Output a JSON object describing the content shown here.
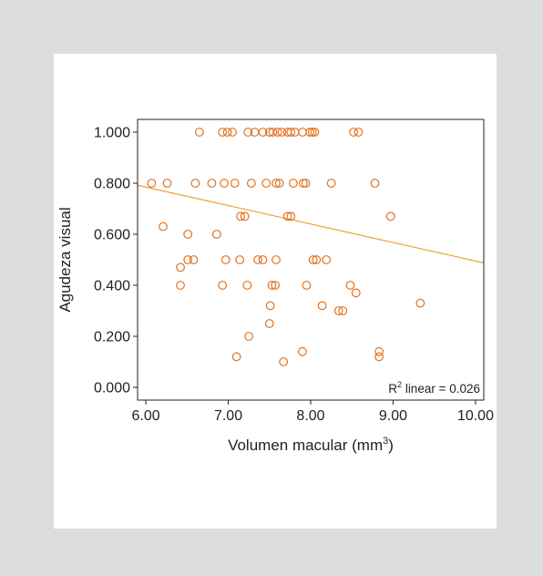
{
  "chart_data": {
    "type": "scatter",
    "xlabel_text": "Volumen macular (mm",
    "xlabel_sup": "3",
    "xlabel_close": ")",
    "ylabel": "Agudeza visual",
    "xlim": [
      5.9,
      10.1
    ],
    "ylim": [
      -0.05,
      1.05
    ],
    "x_ticks": [
      6,
      7,
      8,
      9,
      10
    ],
    "x_tick_labels": [
      "6.00",
      "7.00",
      "8.00",
      "9.00",
      "10.00"
    ],
    "y_ticks": [
      0,
      0.2,
      0.4,
      0.6,
      0.8,
      1.0
    ],
    "y_tick_labels": [
      "0.000",
      "0.200",
      "0.400",
      "0.600",
      "0.800",
      "1.000"
    ],
    "annotation_prefix": "R",
    "annotation_sup": "2",
    "annotation_suffix": " linear = 0.026",
    "fit_line": {
      "x": [
        5.9,
        10.1
      ],
      "y": [
        0.792,
        0.488
      ]
    },
    "colors": {
      "points": "#e0731f",
      "fit_line": "#f0a030",
      "frame": "#231f20"
    },
    "points": [
      {
        "x": 6.65,
        "y": 1.0
      },
      {
        "x": 6.93,
        "y": 1.0
      },
      {
        "x": 6.99,
        "y": 1.0
      },
      {
        "x": 7.05,
        "y": 1.0
      },
      {
        "x": 7.24,
        "y": 1.0
      },
      {
        "x": 7.32,
        "y": 1.0
      },
      {
        "x": 7.42,
        "y": 1.0
      },
      {
        "x": 7.5,
        "y": 1.0
      },
      {
        "x": 7.54,
        "y": 1.0
      },
      {
        "x": 7.6,
        "y": 1.0
      },
      {
        "x": 7.65,
        "y": 1.0
      },
      {
        "x": 7.72,
        "y": 1.0
      },
      {
        "x": 7.76,
        "y": 1.0
      },
      {
        "x": 7.81,
        "y": 1.0
      },
      {
        "x": 7.9,
        "y": 1.0
      },
      {
        "x": 7.99,
        "y": 1.0
      },
      {
        "x": 8.02,
        "y": 1.0
      },
      {
        "x": 8.05,
        "y": 1.0
      },
      {
        "x": 8.52,
        "y": 1.0
      },
      {
        "x": 8.58,
        "y": 1.0
      },
      {
        "x": 6.07,
        "y": 0.8
      },
      {
        "x": 6.26,
        "y": 0.8
      },
      {
        "x": 6.6,
        "y": 0.8
      },
      {
        "x": 6.8,
        "y": 0.8
      },
      {
        "x": 6.95,
        "y": 0.8
      },
      {
        "x": 7.08,
        "y": 0.8
      },
      {
        "x": 7.28,
        "y": 0.8
      },
      {
        "x": 7.46,
        "y": 0.8
      },
      {
        "x": 7.58,
        "y": 0.8
      },
      {
        "x": 7.62,
        "y": 0.8
      },
      {
        "x": 7.79,
        "y": 0.8
      },
      {
        "x": 7.91,
        "y": 0.8
      },
      {
        "x": 7.94,
        "y": 0.8
      },
      {
        "x": 8.25,
        "y": 0.8
      },
      {
        "x": 8.78,
        "y": 0.8
      },
      {
        "x": 7.15,
        "y": 0.67
      },
      {
        "x": 7.2,
        "y": 0.67
      },
      {
        "x": 7.72,
        "y": 0.67
      },
      {
        "x": 7.76,
        "y": 0.67
      },
      {
        "x": 8.97,
        "y": 0.67
      },
      {
        "x": 6.21,
        "y": 0.63
      },
      {
        "x": 6.51,
        "y": 0.6
      },
      {
        "x": 6.86,
        "y": 0.6
      },
      {
        "x": 6.51,
        "y": 0.5
      },
      {
        "x": 6.58,
        "y": 0.5
      },
      {
        "x": 6.97,
        "y": 0.5
      },
      {
        "x": 7.14,
        "y": 0.5
      },
      {
        "x": 7.36,
        "y": 0.5
      },
      {
        "x": 7.42,
        "y": 0.5
      },
      {
        "x": 7.58,
        "y": 0.5
      },
      {
        "x": 8.03,
        "y": 0.5
      },
      {
        "x": 8.07,
        "y": 0.5
      },
      {
        "x": 8.19,
        "y": 0.5
      },
      {
        "x": 6.42,
        "y": 0.47
      },
      {
        "x": 6.42,
        "y": 0.4
      },
      {
        "x": 6.93,
        "y": 0.4
      },
      {
        "x": 7.23,
        "y": 0.4
      },
      {
        "x": 7.53,
        "y": 0.4
      },
      {
        "x": 7.57,
        "y": 0.4
      },
      {
        "x": 7.95,
        "y": 0.4
      },
      {
        "x": 8.48,
        "y": 0.4
      },
      {
        "x": 8.55,
        "y": 0.37
      },
      {
        "x": 9.33,
        "y": 0.33
      },
      {
        "x": 7.51,
        "y": 0.32
      },
      {
        "x": 8.14,
        "y": 0.32
      },
      {
        "x": 8.34,
        "y": 0.3
      },
      {
        "x": 8.39,
        "y": 0.3
      },
      {
        "x": 7.5,
        "y": 0.25
      },
      {
        "x": 7.25,
        "y": 0.2
      },
      {
        "x": 7.9,
        "y": 0.14
      },
      {
        "x": 8.83,
        "y": 0.14
      },
      {
        "x": 7.1,
        "y": 0.12
      },
      {
        "x": 8.83,
        "y": 0.12
      },
      {
        "x": 7.67,
        "y": 0.1
      }
    ]
  }
}
